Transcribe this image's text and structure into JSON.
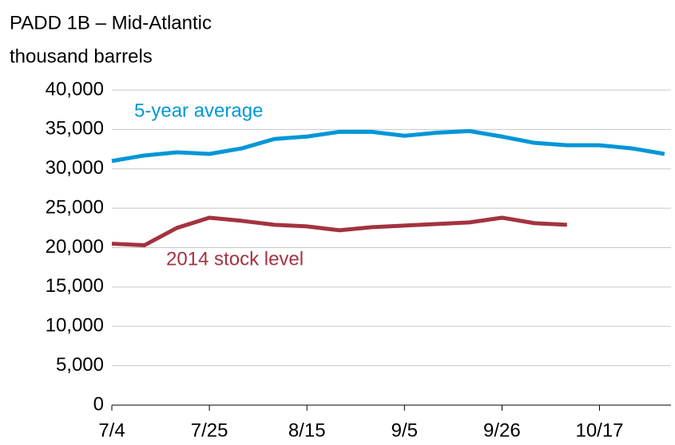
{
  "chart_data": {
    "type": "line",
    "title": "PADD 1B – Mid-Atlantic",
    "subtitle": "thousand barrels",
    "categories": [
      "7/4",
      null,
      null,
      "7/25",
      null,
      null,
      "8/15",
      null,
      null,
      "9/5",
      null,
      null,
      "9/26",
      null,
      null,
      "10/17",
      null,
      null
    ],
    "series": [
      {
        "name": "5-year average",
        "color": "#0096d7",
        "values": [
          31000,
          31700,
          32100,
          31900,
          32600,
          33800,
          34100,
          34700,
          34700,
          34200,
          34600,
          34800,
          34100,
          33300,
          33000,
          33000,
          32600,
          31900
        ]
      },
      {
        "name": "2014 stock level",
        "color": "#a33340",
        "values": [
          20500,
          20300,
          22500,
          23800,
          23400,
          22900,
          22700,
          22200,
          22600,
          22800,
          23000,
          23200,
          23800,
          23100,
          22900,
          null,
          null,
          null
        ]
      }
    ],
    "ylim": [
      0,
      40000
    ],
    "yticks": [
      0,
      {
        "value": 5000,
        "label": "5,000"
      },
      {
        "value": 10000,
        "label": "10,000"
      },
      {
        "value": 15000,
        "label": "15,000"
      },
      {
        "value": 20000,
        "label": "20,000"
      },
      {
        "value": 25000,
        "label": "25,000"
      },
      {
        "value": 30000,
        "label": "30,000"
      },
      {
        "value": 35000,
        "label": "35,000"
      },
      {
        "value": 40000,
        "label": "40,000"
      }
    ],
    "grid": true
  }
}
